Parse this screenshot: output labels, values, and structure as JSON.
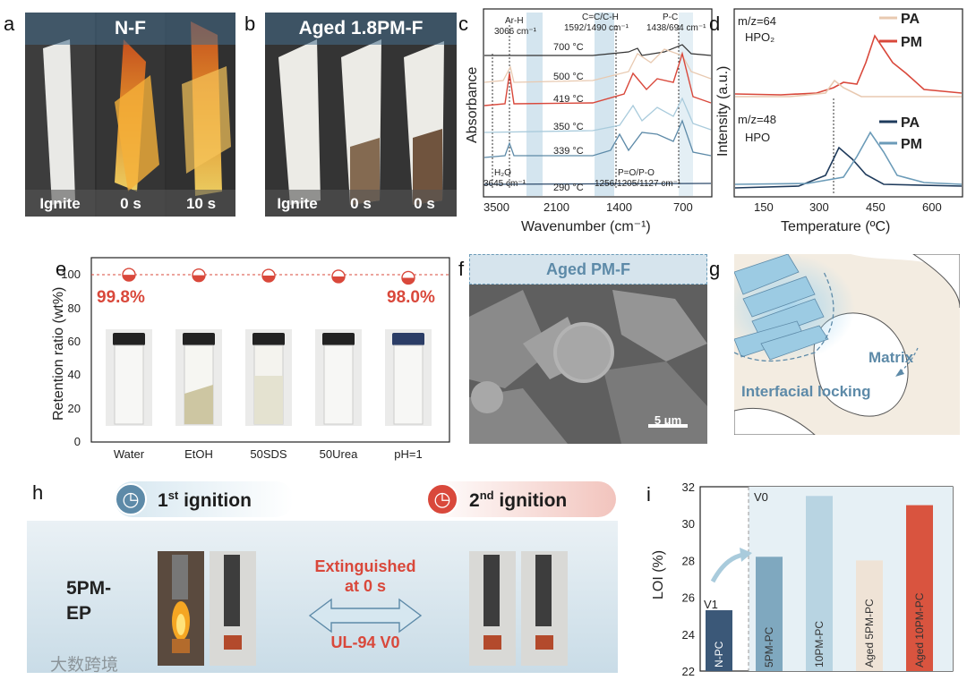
{
  "panels": {
    "a": {
      "label": "a",
      "title": "N-F",
      "captions": [
        "Ignite",
        "0 s",
        "10 s"
      ]
    },
    "b": {
      "label": "b",
      "title": "Aged 1.8PM-F",
      "captions": [
        "Ignite",
        "0 s",
        "0 s"
      ]
    },
    "c": {
      "label": "c",
      "ylabel": "Absorbance",
      "xlabel": "Wavenumber (cm⁻¹)",
      "xticks": [
        "3500",
        "2100",
        "1400",
        "700"
      ],
      "temps": [
        "700 °C",
        "500 °C",
        "419 °C",
        "350 °C",
        "339 °C",
        "290 °C"
      ],
      "annotations": {
        "arh": "Ar-H",
        "arh_wn": "3066 cm⁻¹",
        "cc": "C=C/C-H",
        "cc_wn": "1592/1490 cm⁻¹",
        "pc": "P-C",
        "pc_wn": "1438/694 cm⁻¹",
        "h2o": "H₂O",
        "h2o_wn": "3645 cm⁻¹",
        "po": "P=O/P-O",
        "po_wn": "1256/1205/1127 cm⁻¹"
      }
    },
    "d": {
      "label": "d",
      "ylabel": "Intensity (a.u.)",
      "xlabel": "Temperature (ºC)",
      "xticks": [
        "150",
        "300",
        "450",
        "600"
      ],
      "top_mz": "m/z=64",
      "top_species": "HPO₂",
      "bottom_mz": "m/z=48",
      "bottom_species": "HPO",
      "legend": [
        "PA",
        "PM",
        "PA",
        "PM"
      ]
    },
    "e": {
      "label": "e",
      "ylabel": "Retention ratio (wt%)",
      "yticks": [
        "0",
        "20",
        "40",
        "60",
        "80",
        "100"
      ],
      "categories": [
        "Water",
        "EtOH",
        "50SDS",
        "50Urea",
        "pH=1"
      ],
      "left_value": "99.8%",
      "right_value": "98.0%"
    },
    "f": {
      "label": "f",
      "title": "Aged PM-F",
      "scale": "5 μm"
    },
    "g": {
      "label": "g",
      "matrix": "Matrix",
      "interfacial": "Interfacial locking"
    },
    "h": {
      "label": "h",
      "first": "1",
      "first_sup": "st",
      "first_rest": " ignition",
      "second": "2",
      "second_sup": "nd",
      "second_rest": " ignition",
      "sample": "5PM-\nEP",
      "sample_line1": "5PM-",
      "sample_line2": "EP",
      "extinguished1": "Extinguished",
      "extinguished2": "at 0 s",
      "rating": "UL-94 V0",
      "watermark": "大数跨境"
    },
    "i": {
      "label": "i",
      "ylabel": "LOI (%)",
      "v1": "V1",
      "v0": "V0",
      "yticks": [
        "22",
        "24",
        "26",
        "28",
        "30",
        "32"
      ]
    }
  },
  "colors": {
    "pm_red": "#d9483b",
    "pa_beige": "#e8c9b0",
    "pm_blue": "#6b9bb8",
    "pa_navy": "#1f3b5c",
    "highlight": "#c9dfeb"
  },
  "chart_data": [
    {
      "type": "bar",
      "panel": "e",
      "categories": [
        "Water",
        "EtOH",
        "50SDS",
        "50Urea",
        "pH=1"
      ],
      "values": [
        99.8,
        99.5,
        99.3,
        98.8,
        98.0
      ],
      "ylabel": "Retention ratio (wt%)",
      "ylim": [
        0,
        110
      ],
      "reference_line": 98.0
    },
    {
      "type": "bar",
      "panel": "i",
      "categories": [
        "N-PC",
        "5PM-PC",
        "10PM-PC",
        "Aged 5PM-PC",
        "Aged 10PM-PC"
      ],
      "values": [
        25.3,
        28.2,
        31.5,
        28.0,
        31.0
      ],
      "colors": [
        "#3b5878",
        "#7fa8bf",
        "#b8d4e2",
        "#efe3d6",
        "#d9543f"
      ],
      "ylabel": "LOI (%)",
      "ylim": [
        22,
        32
      ]
    }
  ]
}
